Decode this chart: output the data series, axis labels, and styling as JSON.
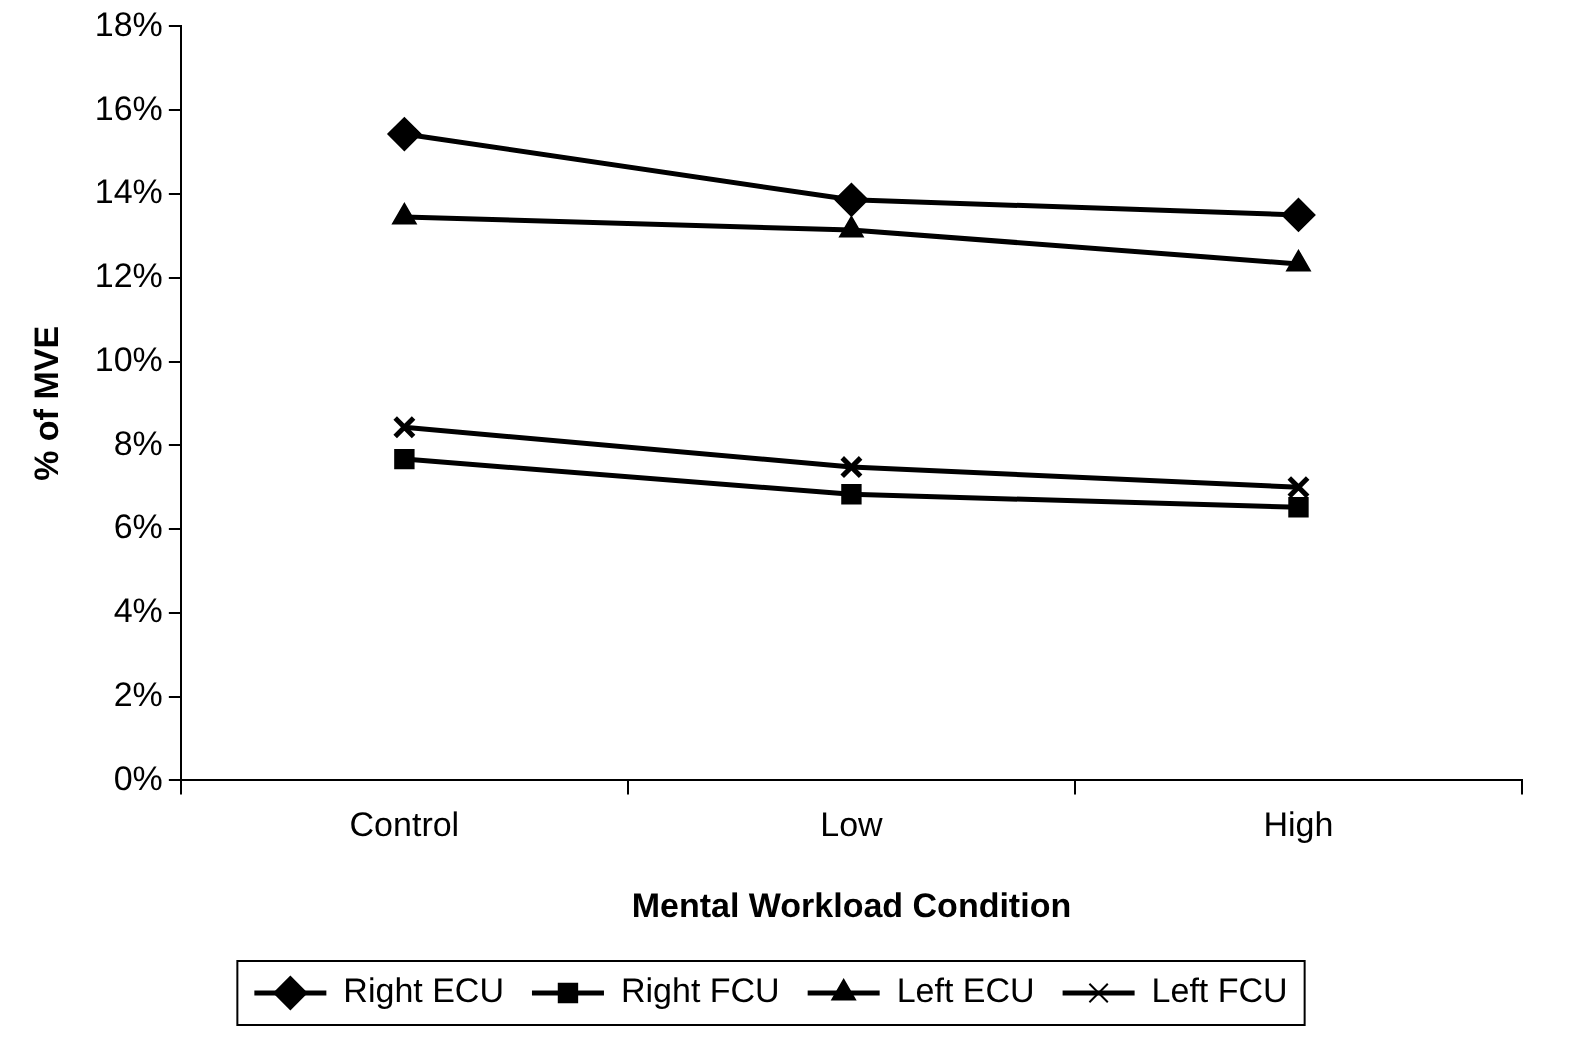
{
  "chart_data": {
    "type": "line",
    "xlabel": "Mental Workload Condition",
    "ylabel": "% of MVE",
    "categories": [
      "Control",
      "Low",
      "High"
    ],
    "series": [
      {
        "name": "Right ECU",
        "color": "#000000",
        "marker": "diamond",
        "values": [
          15.43,
          13.86,
          13.5
        ]
      },
      {
        "name": "Right FCU",
        "color": "#000000",
        "marker": "square",
        "values": [
          7.67,
          6.83,
          6.52
        ]
      },
      {
        "name": "Left ECU",
        "color": "#000000",
        "marker": "triangle",
        "values": [
          13.45,
          13.14,
          12.33
        ]
      },
      {
        "name": "Left FCU",
        "color": "#000000",
        "marker": "cross",
        "values": [
          8.43,
          7.48,
          7.0
        ]
      }
    ],
    "ylim": [
      0,
      18
    ],
    "yticks": [
      {
        "value": 0,
        "label": "0%"
      },
      {
        "value": 2,
        "label": "2%"
      },
      {
        "value": 4,
        "label": "4%"
      },
      {
        "value": 6,
        "label": "6%"
      },
      {
        "value": 8,
        "label": "8%"
      },
      {
        "value": 10,
        "label": "10%"
      },
      {
        "value": 12,
        "label": "12%"
      },
      {
        "value": 14,
        "label": "14%"
      },
      {
        "value": 16,
        "label": "16%"
      },
      {
        "value": 18,
        "label": "18%"
      }
    ],
    "grid": false,
    "legend": "bottom",
    "line_style": "solid"
  }
}
